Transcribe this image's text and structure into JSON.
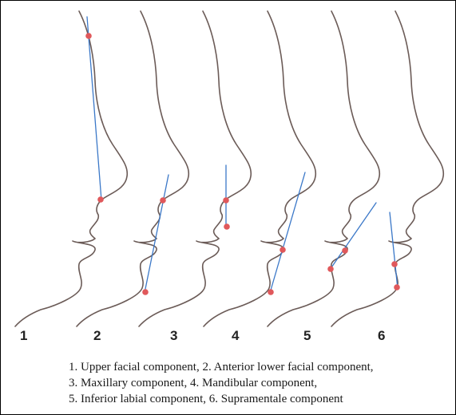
{
  "panel_numbers": [
    "1",
    "2",
    "3",
    "4",
    "5",
    "6"
  ],
  "caption": {
    "line1": "1. Upper facial component, 2. Anterior lower facial component,",
    "line2": "3. Maxillary component, 4. Mandibular component,",
    "line3": "5. Inferior labial component, 6. Supramentale  component"
  },
  "colors": {
    "profile_line": "#6b5b57",
    "reference_line": "#3b78c8",
    "landmark_point": "#e0585b",
    "border": "#000000"
  }
}
